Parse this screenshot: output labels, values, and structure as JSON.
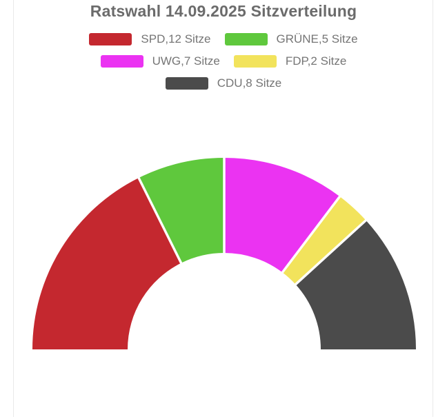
{
  "page": {
    "background": "#ffffff",
    "card_border_color": "#e9e9e9"
  },
  "styles": {
    "title_color": "#6b6b6b",
    "legend_text_color": "#757575",
    "divider_color": "#ffffff"
  },
  "chart_data": {
    "type": "pie",
    "variant": "half-donut",
    "title": "Ratswahl 14.09.2025 Sitzverteilung",
    "unit_label": "Sitze",
    "total_seats": 34,
    "legend_position": "top",
    "start_angle_deg": 180,
    "end_angle_deg": 0,
    "series": [
      {
        "id": "spd",
        "party": "SPD",
        "seats": 12,
        "label": "SPD,12 Sitze",
        "color": "#c4282f"
      },
      {
        "id": "gruene",
        "party": "GRÜNE",
        "seats": 5,
        "label": "GRÜNE,5 Sitze",
        "color": "#5fc83d"
      },
      {
        "id": "uwg",
        "party": "UWG",
        "seats": 7,
        "label": "UWG,7 Sitze",
        "color": "#eb33f2"
      },
      {
        "id": "fdp",
        "party": "FDP",
        "seats": 2,
        "label": "FDP,2 Sitze",
        "color": "#f2e35c"
      },
      {
        "id": "cdu",
        "party": "CDU",
        "seats": 8,
        "label": "CDU,8 Sitze",
        "color": "#4b4b4b"
      }
    ]
  }
}
